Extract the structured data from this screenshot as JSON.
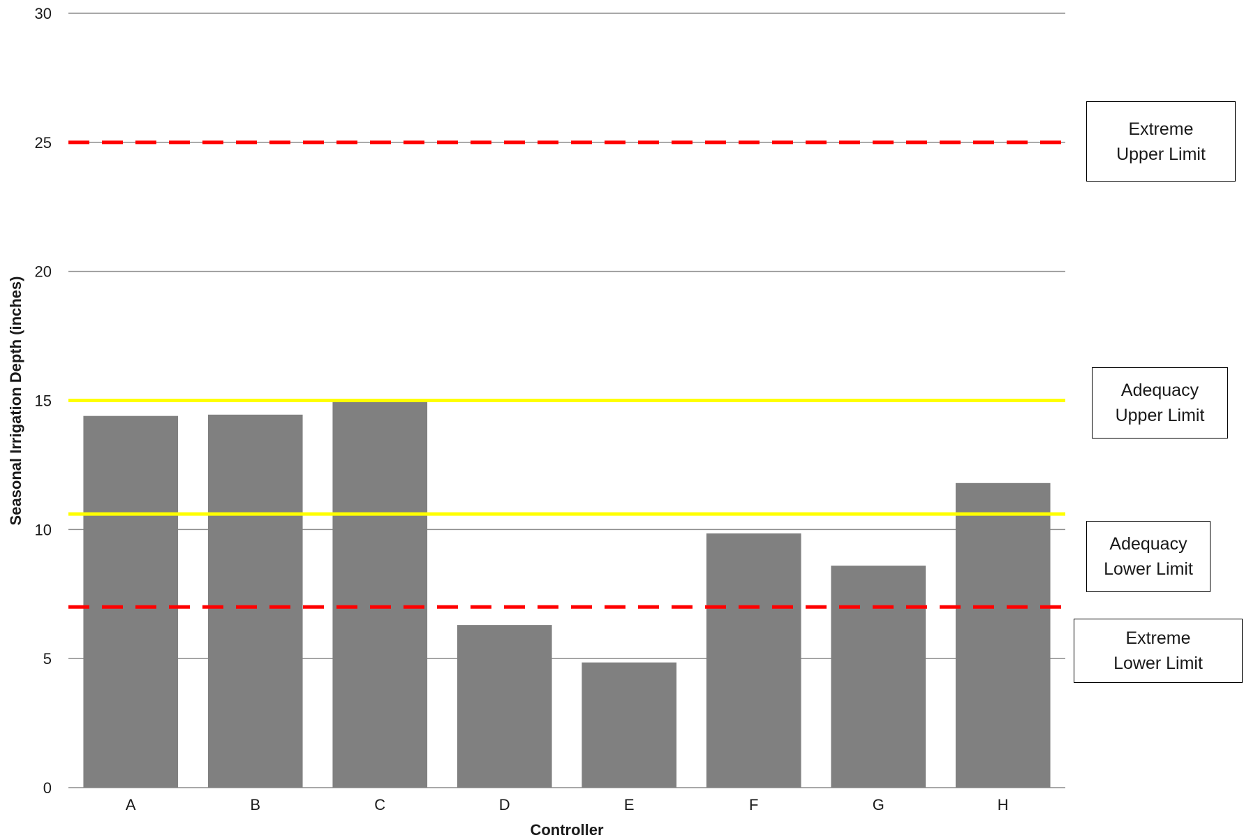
{
  "chart_data": {
    "type": "bar",
    "xlabel": "Controller",
    "ylabel": "Seasonal Irrigation Depth (inches)",
    "ylim": [
      0,
      30
    ],
    "yticks": [
      0,
      5,
      10,
      15,
      20,
      25,
      30
    ],
    "grid": true,
    "categories": [
      "A",
      "B",
      "C",
      "D",
      "E",
      "F",
      "G",
      "H"
    ],
    "values": [
      14.4,
      14.45,
      15.0,
      6.3,
      4.85,
      9.85,
      8.6,
      11.8
    ],
    "bar_color": "#808080",
    "reference_lines": [
      {
        "key": "extreme_upper",
        "value": 25,
        "style": "dashed",
        "color": "#ff0000"
      },
      {
        "key": "adequacy_upper",
        "value": 15,
        "style": "solid",
        "color": "#ffff00"
      },
      {
        "key": "adequacy_lower",
        "value": 10.6,
        "style": "solid",
        "color": "#ffff00"
      },
      {
        "key": "extreme_lower",
        "value": 7,
        "style": "dashed",
        "color": "#ff0000"
      }
    ],
    "annotations": {
      "extreme_upper": [
        "Extreme",
        "Upper Limit"
      ],
      "adequacy_upper": [
        "Adequacy",
        "Upper Limit"
      ],
      "adequacy_lower": [
        "Adequacy",
        "Lower Limit"
      ],
      "extreme_lower": [
        "Extreme",
        "Lower Limit"
      ]
    }
  }
}
